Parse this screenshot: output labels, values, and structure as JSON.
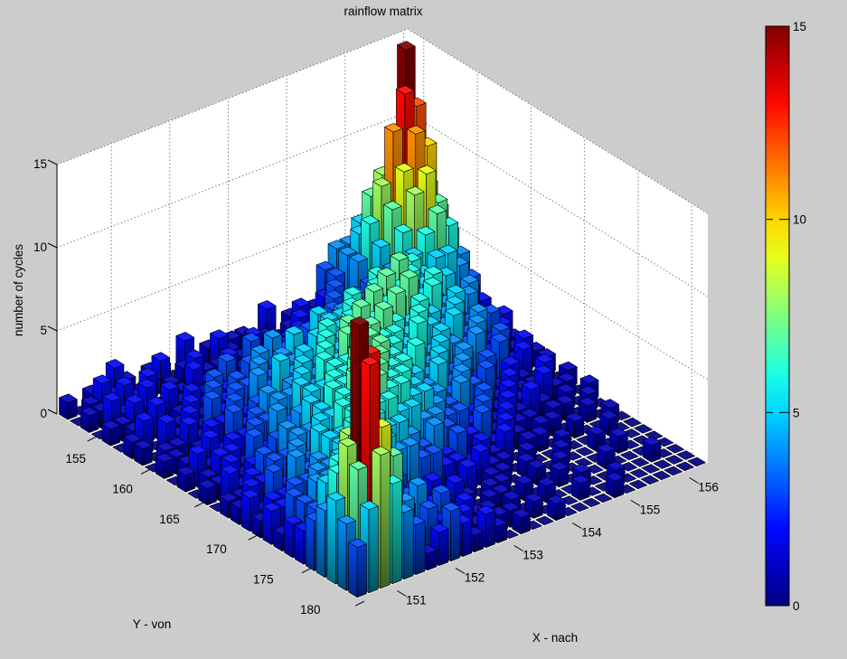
{
  "figure": {
    "title": "rainflow matrix",
    "background_color": "#cccccc",
    "wall_color": "#ffffff",
    "floor_color": "#f8f8f8"
  },
  "axes": {
    "xlabel": "X - nach",
    "ylabel": "Y - von",
    "zlabel": "number of cycles",
    "x_ticks": [
      151,
      152,
      153,
      154,
      155,
      156
    ],
    "y_ticks": [
      155,
      160,
      165,
      170,
      175,
      180
    ],
    "z_ticks": [
      0,
      5,
      10,
      15
    ],
    "x_range": [
      150.5,
      156.5
    ],
    "y_range": [
      153.5,
      181.5
    ],
    "z_range": [
      0,
      15
    ],
    "grid_style": "dotted"
  },
  "colorbar": {
    "min": 0,
    "max": 15,
    "ticks": [
      0,
      5,
      10,
      15
    ],
    "colormap": "jet"
  },
  "chart_data": {
    "type": "bar3d",
    "title": "rainflow matrix",
    "xlabel": "X - nach",
    "ylabel": "Y - von",
    "zlabel": "number of cycles",
    "zlim": [
      0,
      15
    ],
    "colormap": "jet",
    "color_by": "height",
    "nx": 30,
    "ny": 28,
    "x_start": 150.6,
    "x_step": 0.2,
    "y_start": 154,
    "y_step": 1,
    "bar_width": 0.8,
    "encoding": "one hex digit per cell, value 0-15 = number of cycles; rows ordered from y=154 (back) to y=181 (front), columns from x=150.6 to x=156.4",
    "heights_hex_rows": [
      "101021011020101102010134456765",
      "012110120110210110121234578af6",
      "11021201021101201120132468bdc7",
      "021120112102121102123223579ba6",
      "112012101121312211232213468975",
      "011201212312231232334312456764",
      "120112132232433243443402345543",
      "102121323243343544546556543232",
      "011213233434534556565765453421",
      "110122324344354565676656434212",
      "011213233545465657667564532321",
      "121122343454656766756545342210",
      "012213344546576676565453423121",
      "112132435465767665645434231201",
      "021223345566776655453423121010",
      "112324354667676564534231211201",
      "122334456676766545343212102110",
      "213243556767665443423121210101",
      "122435466776655433231211011010",
      "223345567665544322312101100100",
      "132445666554342312120110010010",
      "234456565443322121101001000100",
      "234432123212112011010010010000",
      "356543232211210110010100001000",
      "468b64233221101101001000100000",
      "58fd85342312110100100100000100",
      "47d974232121011010001001000000",
      "358643123212101001000010000000"
    ]
  }
}
